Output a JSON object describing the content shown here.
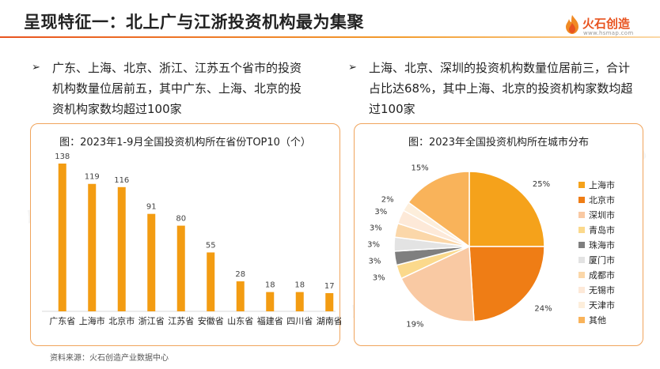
{
  "header": {
    "title": "呈现特征一：北上广与江浙投资机构最为集聚",
    "logo_name": "火石创造",
    "logo_url": "www.hsmap.com"
  },
  "bullets": {
    "left": "广东、上海、北京、浙江、江苏五个省市的投资机构数量位居前五，其中广东、上海、北京的投资机构家数均超过100家",
    "right": "上海、北京、深圳的投资机构数量位居前三，合计占比达68%，其中上海、北京的投资机构家数均超过100家",
    "arrow": "➢"
  },
  "source": "资料来源：火石创造产业数据中心",
  "watermark_text": "火石创造",
  "chart_data": [
    {
      "type": "bar",
      "title": "图：2023年1-9月全国投资机构所在省份TOP10（个）",
      "categories": [
        "广东省",
        "上海市",
        "北京市",
        "浙江省",
        "江苏省",
        "安徽省",
        "山东省",
        "福建省",
        "四川省",
        "湖南省"
      ],
      "values": [
        138,
        119,
        116,
        91,
        80,
        55,
        28,
        18,
        18,
        17
      ],
      "ylim": [
        0,
        138
      ],
      "grid": false,
      "color": "#f39c12"
    },
    {
      "type": "pie",
      "title": "图：2023年全国投资机构所在城市分布",
      "labels": [
        "上海市",
        "北京市",
        "深圳市",
        "青岛市",
        "珠海市",
        "厦门市",
        "成都市",
        "无锡市",
        "天津市",
        "其他"
      ],
      "values": [
        25,
        24,
        19,
        3,
        3,
        3,
        3,
        3,
        2,
        15
      ],
      "value_labels": [
        "25%",
        "24%",
        "19%",
        "3%",
        "3%",
        "3%",
        "3%",
        "3%",
        "2%",
        "15%"
      ],
      "colors": [
        "#f5a21b",
        "#ef7d15",
        "#f9c9a3",
        "#fbd98c",
        "#7f7f7f",
        "#e3e3e3",
        "#fbd7a9",
        "#fde9d8",
        "#fdeedb",
        "#f9b35a"
      ],
      "legend_position": "right"
    }
  ]
}
